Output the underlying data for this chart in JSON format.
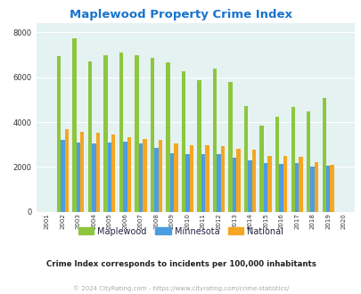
{
  "title": "Maplewood Property Crime Index",
  "title_color": "#1874CD",
  "years": [
    2001,
    2002,
    2003,
    2004,
    2005,
    2006,
    2007,
    2008,
    2009,
    2010,
    2011,
    2012,
    2013,
    2014,
    2015,
    2016,
    2017,
    2018,
    2019,
    2020
  ],
  "maplewood": [
    0,
    6950,
    7750,
    6700,
    7000,
    7100,
    7000,
    6870,
    6680,
    6280,
    5880,
    6400,
    5780,
    4720,
    3850,
    4250,
    4680,
    4470,
    5060,
    0
  ],
  "minnesota": [
    0,
    3220,
    3080,
    3030,
    3100,
    3110,
    3030,
    2850,
    2620,
    2580,
    2580,
    2580,
    2400,
    2310,
    2180,
    2130,
    2190,
    2020,
    2070,
    0
  ],
  "national": [
    0,
    3680,
    3580,
    3510,
    3440,
    3340,
    3250,
    3190,
    3050,
    2960,
    2970,
    2930,
    2820,
    2750,
    2500,
    2490,
    2460,
    2200,
    2100,
    0
  ],
  "maplewood_color": "#8dc63f",
  "minnesota_color": "#4d9de0",
  "national_color": "#f5a623",
  "plot_bg": "#e4f2f2",
  "ylabel_vals": [
    0,
    2000,
    4000,
    6000,
    8000
  ],
  "ylim": [
    0,
    8400
  ],
  "subtitle": "Crime Index corresponds to incidents per 100,000 inhabitants",
  "subtitle_color": "#222222",
  "footer": "© 2024 CityRating.com - https://www.cityrating.com/crime-statistics/",
  "footer_color": "#aaaaaa",
  "legend_label_maplewood": "Maplewood",
  "legend_label_minnesota": "Minnesota",
  "legend_label_national": "National",
  "legend_text_color": "#222244"
}
